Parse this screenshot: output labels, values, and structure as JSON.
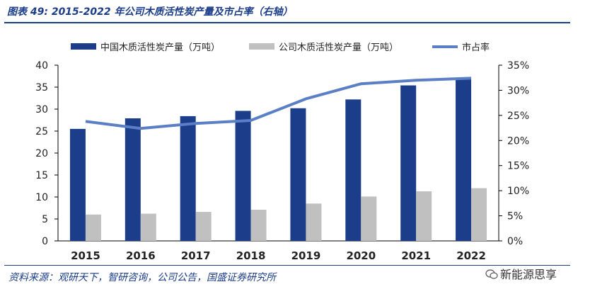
{
  "figure": {
    "title": "图表 49:  2015-2022 年公司木质活性炭产量及市占率（右轴）",
    "source": "资料来源：观研天下，智研咨询，公司公告，国盛证券研究所",
    "watermark": "新能源思享"
  },
  "chart_data": {
    "type": "bar",
    "categories": [
      "2015",
      "2016",
      "2017",
      "2018",
      "2019",
      "2020",
      "2021",
      "2022"
    ],
    "series": [
      {
        "name": "中国木质活性炭产量（万吨）",
        "kind": "bar",
        "axis": "left",
        "color": "#1b3d8a",
        "values": [
          25.5,
          27.9,
          28.4,
          29.6,
          30.2,
          32.2,
          35.4,
          36.8
        ]
      },
      {
        "name": "公司木质活性炭产量（万吨）",
        "kind": "bar",
        "axis": "left",
        "color": "#c0c0c0",
        "values": [
          6.0,
          6.2,
          6.6,
          7.1,
          8.5,
          10.1,
          11.3,
          12.0
        ]
      },
      {
        "name": "市占率",
        "kind": "line",
        "axis": "right",
        "color": "#5b7fc4",
        "values": [
          23.8,
          22.4,
          23.4,
          24.0,
          28.3,
          31.3,
          32.0,
          32.4
        ]
      }
    ],
    "left_axis": {
      "min": 0,
      "max": 40,
      "ticks": [
        0,
        5,
        10,
        15,
        20,
        25,
        30,
        35,
        40
      ]
    },
    "right_axis": {
      "min": 0,
      "max": 35,
      "ticks": [
        "0%",
        "5%",
        "10%",
        "15%",
        "20%",
        "25%",
        "30%",
        "35%"
      ]
    },
    "legend_position": "top",
    "grid": false
  }
}
